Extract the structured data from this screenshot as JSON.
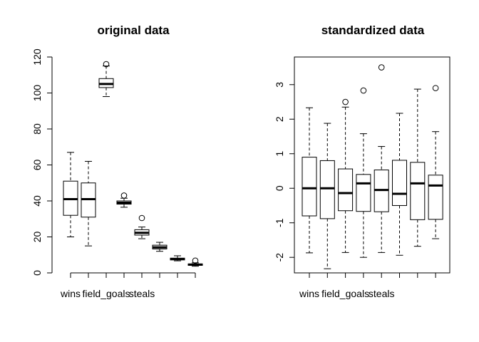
{
  "chart_data": [
    {
      "type": "boxplot",
      "title": "original data",
      "xlabel": "",
      "ylabel": "",
      "ylim": [
        0,
        120
      ],
      "yticks": [
        0,
        20,
        40,
        60,
        80,
        100,
        120
      ],
      "x_tick_labels": [
        "wins",
        "field_goals",
        "steals"
      ],
      "x_tick_label_positions": [
        1,
        3,
        5
      ],
      "boxes": [
        {
          "whisker_low": 20,
          "q1": 32,
          "median": 41,
          "q3": 51,
          "whisker_high": 67,
          "outliers": []
        },
        {
          "whisker_low": 15,
          "q1": 31,
          "median": 41,
          "q3": 50,
          "whisker_high": 62,
          "outliers": []
        },
        {
          "whisker_low": 98,
          "q1": 103,
          "median": 105,
          "q3": 108,
          "whisker_high": 115,
          "outliers": [
            116
          ]
        },
        {
          "whisker_low": 36.5,
          "q1": 38.2,
          "median": 39,
          "q3": 40,
          "whisker_high": 41.5,
          "outliers": [
            43
          ]
        },
        {
          "whisker_low": 19,
          "q1": 21,
          "median": 22.3,
          "q3": 24,
          "whisker_high": 25.5,
          "outliers": [
            30.5
          ]
        },
        {
          "whisker_low": 12,
          "q1": 13.3,
          "median": 14.2,
          "q3": 15.4,
          "whisker_high": 17,
          "outliers": []
        },
        {
          "whisker_low": 6.7,
          "q1": 7.2,
          "median": 7.7,
          "q3": 8.2,
          "whisker_high": 9.5,
          "outliers": []
        },
        {
          "whisker_low": 3.7,
          "q1": 4.2,
          "median": 4.6,
          "q3": 5.0,
          "whisker_high": 5.6,
          "outliers": [
            6.8
          ]
        }
      ]
    },
    {
      "type": "boxplot",
      "title": "standardized data",
      "xlabel": "",
      "ylabel": "",
      "ylim": [
        -2.45,
        3.8
      ],
      "yticks": [
        -2,
        -1,
        0,
        1,
        2,
        3
      ],
      "x_tick_labels": [
        "wins",
        "field_goals",
        "steals"
      ],
      "x_tick_label_positions": [
        1,
        3,
        5
      ],
      "boxes": [
        {
          "whisker_low": -1.87,
          "q1": -0.8,
          "median": 0.0,
          "q3": 0.9,
          "whisker_high": 2.33,
          "outliers": []
        },
        {
          "whisker_low": -2.33,
          "q1": -0.88,
          "median": 0.0,
          "q3": 0.8,
          "whisker_high": 1.88,
          "outliers": []
        },
        {
          "whisker_low": -1.86,
          "q1": -0.65,
          "median": -0.14,
          "q3": 0.56,
          "whisker_high": 2.35,
          "outliers": [
            2.5
          ]
        },
        {
          "whisker_low": -2.0,
          "q1": -0.67,
          "median": 0.14,
          "q3": 0.4,
          "whisker_high": 1.58,
          "outliers": [
            2.83
          ]
        },
        {
          "whisker_low": -1.86,
          "q1": -0.68,
          "median": -0.05,
          "q3": 0.53,
          "whisker_high": 1.21,
          "outliers": [
            3.5
          ]
        },
        {
          "whisker_low": -1.94,
          "q1": -0.5,
          "median": -0.16,
          "q3": 0.81,
          "whisker_high": 2.17,
          "outliers": []
        },
        {
          "whisker_low": -1.68,
          "q1": -0.91,
          "median": 0.14,
          "q3": 0.75,
          "whisker_high": 2.87,
          "outliers": []
        },
        {
          "whisker_low": -1.46,
          "q1": -0.9,
          "median": 0.08,
          "q3": 0.38,
          "whisker_high": 1.64,
          "outliers": [
            2.9
          ]
        }
      ]
    }
  ]
}
